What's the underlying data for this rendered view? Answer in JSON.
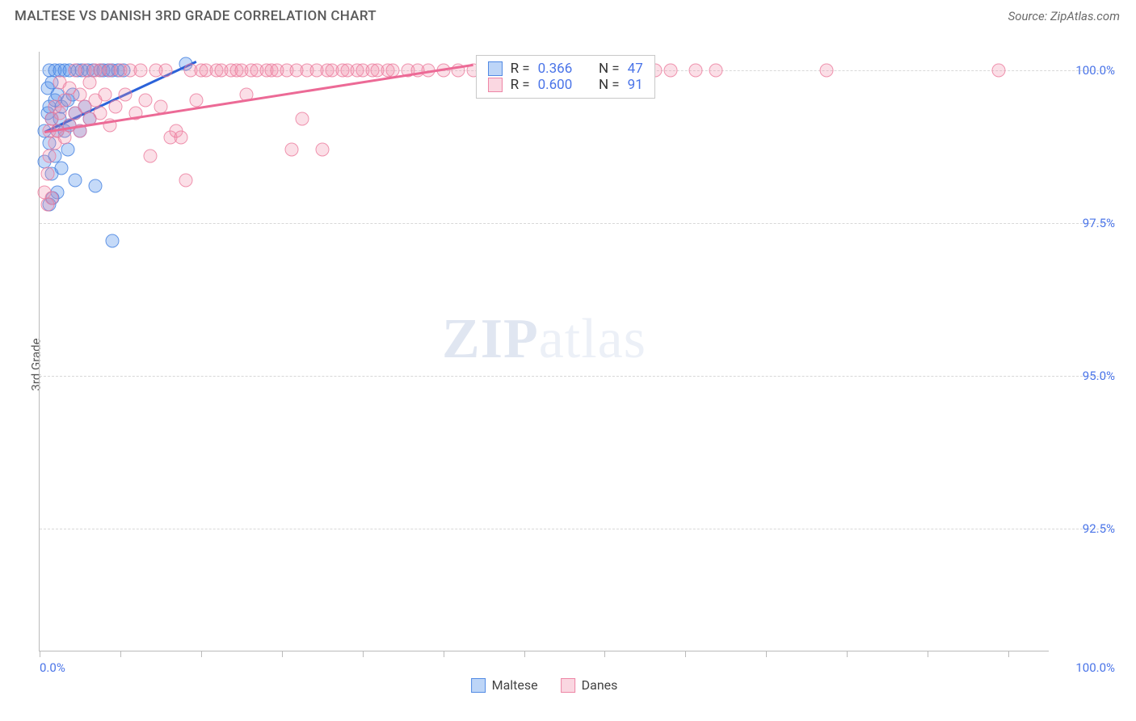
{
  "header": {
    "title": "MALTESE VS DANISH 3RD GRADE CORRELATION CHART",
    "source": "Source: ZipAtlas.com"
  },
  "chart": {
    "type": "scatter",
    "ylabel": "3rd Grade",
    "background_color": "#ffffff",
    "grid_color": "#d8d8d8",
    "axis_color": "#bbbbbb",
    "label_color": "#4a74e8",
    "label_fontsize": 15,
    "xlim": [
      0,
      100
    ],
    "ylim": [
      90.5,
      100.3
    ],
    "x_ticks": [
      0,
      8,
      16,
      24,
      32,
      40,
      48,
      56,
      64,
      72,
      80,
      88,
      96
    ],
    "x_tick_labels": {
      "0": "0.0%",
      "100": "100.0%"
    },
    "y_gridlines": [
      92.5,
      95.0,
      97.5,
      100.0
    ],
    "y_tick_labels": {
      "92.5": "92.5%",
      "95.0": "95.0%",
      "97.5": "97.5%",
      "100.0": "100.0%"
    },
    "marker_size": 17,
    "marker_opacity": 0.35,
    "series": [
      {
        "name": "Maltese",
        "color_fill": "rgba(90,150,235,0.35)",
        "color_stroke": "rgba(70,130,225,0.8)",
        "R": "0.366",
        "N": "47",
        "trend": {
          "x1": 0.5,
          "y1": 99.0,
          "x2": 15.5,
          "y2": 100.15,
          "color": "#2b62d9"
        },
        "points": [
          [
            0.5,
            98.5
          ],
          [
            0.5,
            99.0
          ],
          [
            0.8,
            99.3
          ],
          [
            0.8,
            99.7
          ],
          [
            1.0,
            98.8
          ],
          [
            1.0,
            99.4
          ],
          [
            1.0,
            100.0
          ],
          [
            1.2,
            98.3
          ],
          [
            1.2,
            99.2
          ],
          [
            1.2,
            99.8
          ],
          [
            1.5,
            98.6
          ],
          [
            1.5,
            99.5
          ],
          [
            1.5,
            100.0
          ],
          [
            1.8,
            98.0
          ],
          [
            1.8,
            99.0
          ],
          [
            1.8,
            99.6
          ],
          [
            2.0,
            99.2
          ],
          [
            2.0,
            100.0
          ],
          [
            2.2,
            98.4
          ],
          [
            2.2,
            99.4
          ],
          [
            2.5,
            99.0
          ],
          [
            2.5,
            100.0
          ],
          [
            2.8,
            98.7
          ],
          [
            2.8,
            99.5
          ],
          [
            3.0,
            99.1
          ],
          [
            3.0,
            100.0
          ],
          [
            3.3,
            99.6
          ],
          [
            3.5,
            98.2
          ],
          [
            3.5,
            99.3
          ],
          [
            3.8,
            100.0
          ],
          [
            4.0,
            99.0
          ],
          [
            4.2,
            100.0
          ],
          [
            4.5,
            99.4
          ],
          [
            4.8,
            100.0
          ],
          [
            5.0,
            99.2
          ],
          [
            5.3,
            100.0
          ],
          [
            5.5,
            98.1
          ],
          [
            6.0,
            100.0
          ],
          [
            6.3,
            100.0
          ],
          [
            6.8,
            100.0
          ],
          [
            7.2,
            100.0
          ],
          [
            7.8,
            100.0
          ],
          [
            8.3,
            100.0
          ],
          [
            1.0,
            97.8
          ],
          [
            1.3,
            97.9
          ],
          [
            7.2,
            97.2
          ],
          [
            14.5,
            100.1
          ]
        ]
      },
      {
        "name": "Danes",
        "color_fill": "rgba(240,140,170,0.28)",
        "color_stroke": "rgba(235,120,155,0.75)",
        "R": "0.600",
        "N": "91",
        "trend": {
          "x1": 0.5,
          "y1": 99.0,
          "x2": 43,
          "y2": 100.1,
          "color": "#ec6a96"
        },
        "points": [
          [
            0.5,
            98.0
          ],
          [
            0.8,
            98.3
          ],
          [
            1.0,
            98.6
          ],
          [
            1.0,
            99.0
          ],
          [
            1.2,
            99.2
          ],
          [
            1.5,
            98.8
          ],
          [
            1.5,
            99.4
          ],
          [
            1.8,
            99.0
          ],
          [
            2.0,
            99.3
          ],
          [
            2.0,
            99.8
          ],
          [
            2.5,
            98.9
          ],
          [
            2.5,
            99.5
          ],
          [
            3.0,
            99.1
          ],
          [
            3.0,
            99.7
          ],
          [
            3.5,
            99.3
          ],
          [
            3.5,
            100.0
          ],
          [
            4.0,
            99.0
          ],
          [
            4.0,
            99.6
          ],
          [
            4.5,
            99.4
          ],
          [
            4.5,
            100.0
          ],
          [
            5.0,
            99.2
          ],
          [
            5.0,
            99.8
          ],
          [
            5.5,
            99.5
          ],
          [
            5.5,
            100.0
          ],
          [
            6.0,
            99.3
          ],
          [
            6.0,
            100.0
          ],
          [
            6.5,
            99.6
          ],
          [
            7.0,
            99.1
          ],
          [
            7.0,
            100.0
          ],
          [
            7.5,
            99.4
          ],
          [
            8.0,
            100.0
          ],
          [
            8.5,
            99.6
          ],
          [
            9.0,
            100.0
          ],
          [
            9.5,
            99.3
          ],
          [
            10.0,
            100.0
          ],
          [
            10.5,
            99.5
          ],
          [
            11.0,
            98.6
          ],
          [
            11.5,
            100.0
          ],
          [
            12.0,
            99.4
          ],
          [
            12.5,
            100.0
          ],
          [
            13.0,
            98.9
          ],
          [
            13.5,
            99.0
          ],
          [
            14.0,
            98.9
          ],
          [
            14.5,
            98.2
          ],
          [
            15.0,
            100.0
          ],
          [
            15.5,
            99.5
          ],
          [
            16.0,
            100.0
          ],
          [
            16.5,
            100.0
          ],
          [
            17.5,
            100.0
          ],
          [
            18.0,
            100.0
          ],
          [
            19.0,
            100.0
          ],
          [
            19.5,
            100.0
          ],
          [
            20.0,
            100.0
          ],
          [
            20.5,
            99.6
          ],
          [
            21.0,
            100.0
          ],
          [
            21.5,
            100.0
          ],
          [
            22.5,
            100.0
          ],
          [
            23.0,
            100.0
          ],
          [
            23.5,
            100.0
          ],
          [
            24.5,
            100.0
          ],
          [
            25.0,
            98.7
          ],
          [
            25.5,
            100.0
          ],
          [
            26.0,
            99.2
          ],
          [
            26.5,
            100.0
          ],
          [
            27.5,
            100.0
          ],
          [
            28.0,
            98.7
          ],
          [
            28.5,
            100.0
          ],
          [
            29.0,
            100.0
          ],
          [
            30.0,
            100.0
          ],
          [
            30.5,
            100.0
          ],
          [
            31.5,
            100.0
          ],
          [
            32.0,
            100.0
          ],
          [
            33.0,
            100.0
          ],
          [
            33.5,
            100.0
          ],
          [
            34.5,
            100.0
          ],
          [
            35.0,
            100.0
          ],
          [
            36.5,
            100.0
          ],
          [
            37.5,
            100.0
          ],
          [
            38.5,
            100.0
          ],
          [
            40.0,
            100.0
          ],
          [
            41.5,
            100.0
          ],
          [
            43.0,
            100.0
          ],
          [
            58.5,
            100.0
          ],
          [
            61.0,
            100.0
          ],
          [
            62.5,
            100.0
          ],
          [
            65.0,
            100.0
          ],
          [
            67.0,
            100.0
          ],
          [
            78.0,
            100.0
          ],
          [
            95.0,
            100.0
          ],
          [
            1.2,
            97.9
          ],
          [
            0.8,
            97.8
          ]
        ]
      }
    ],
    "stats_box": {
      "left_pct": 43.2,
      "top_y": 100.25
    },
    "legend_bottom": [
      {
        "swatch": "blue",
        "label": "Maltese"
      },
      {
        "swatch": "pink",
        "label": "Danes"
      }
    ],
    "watermark": {
      "bold": "ZIP",
      "rest": "atlas"
    }
  }
}
